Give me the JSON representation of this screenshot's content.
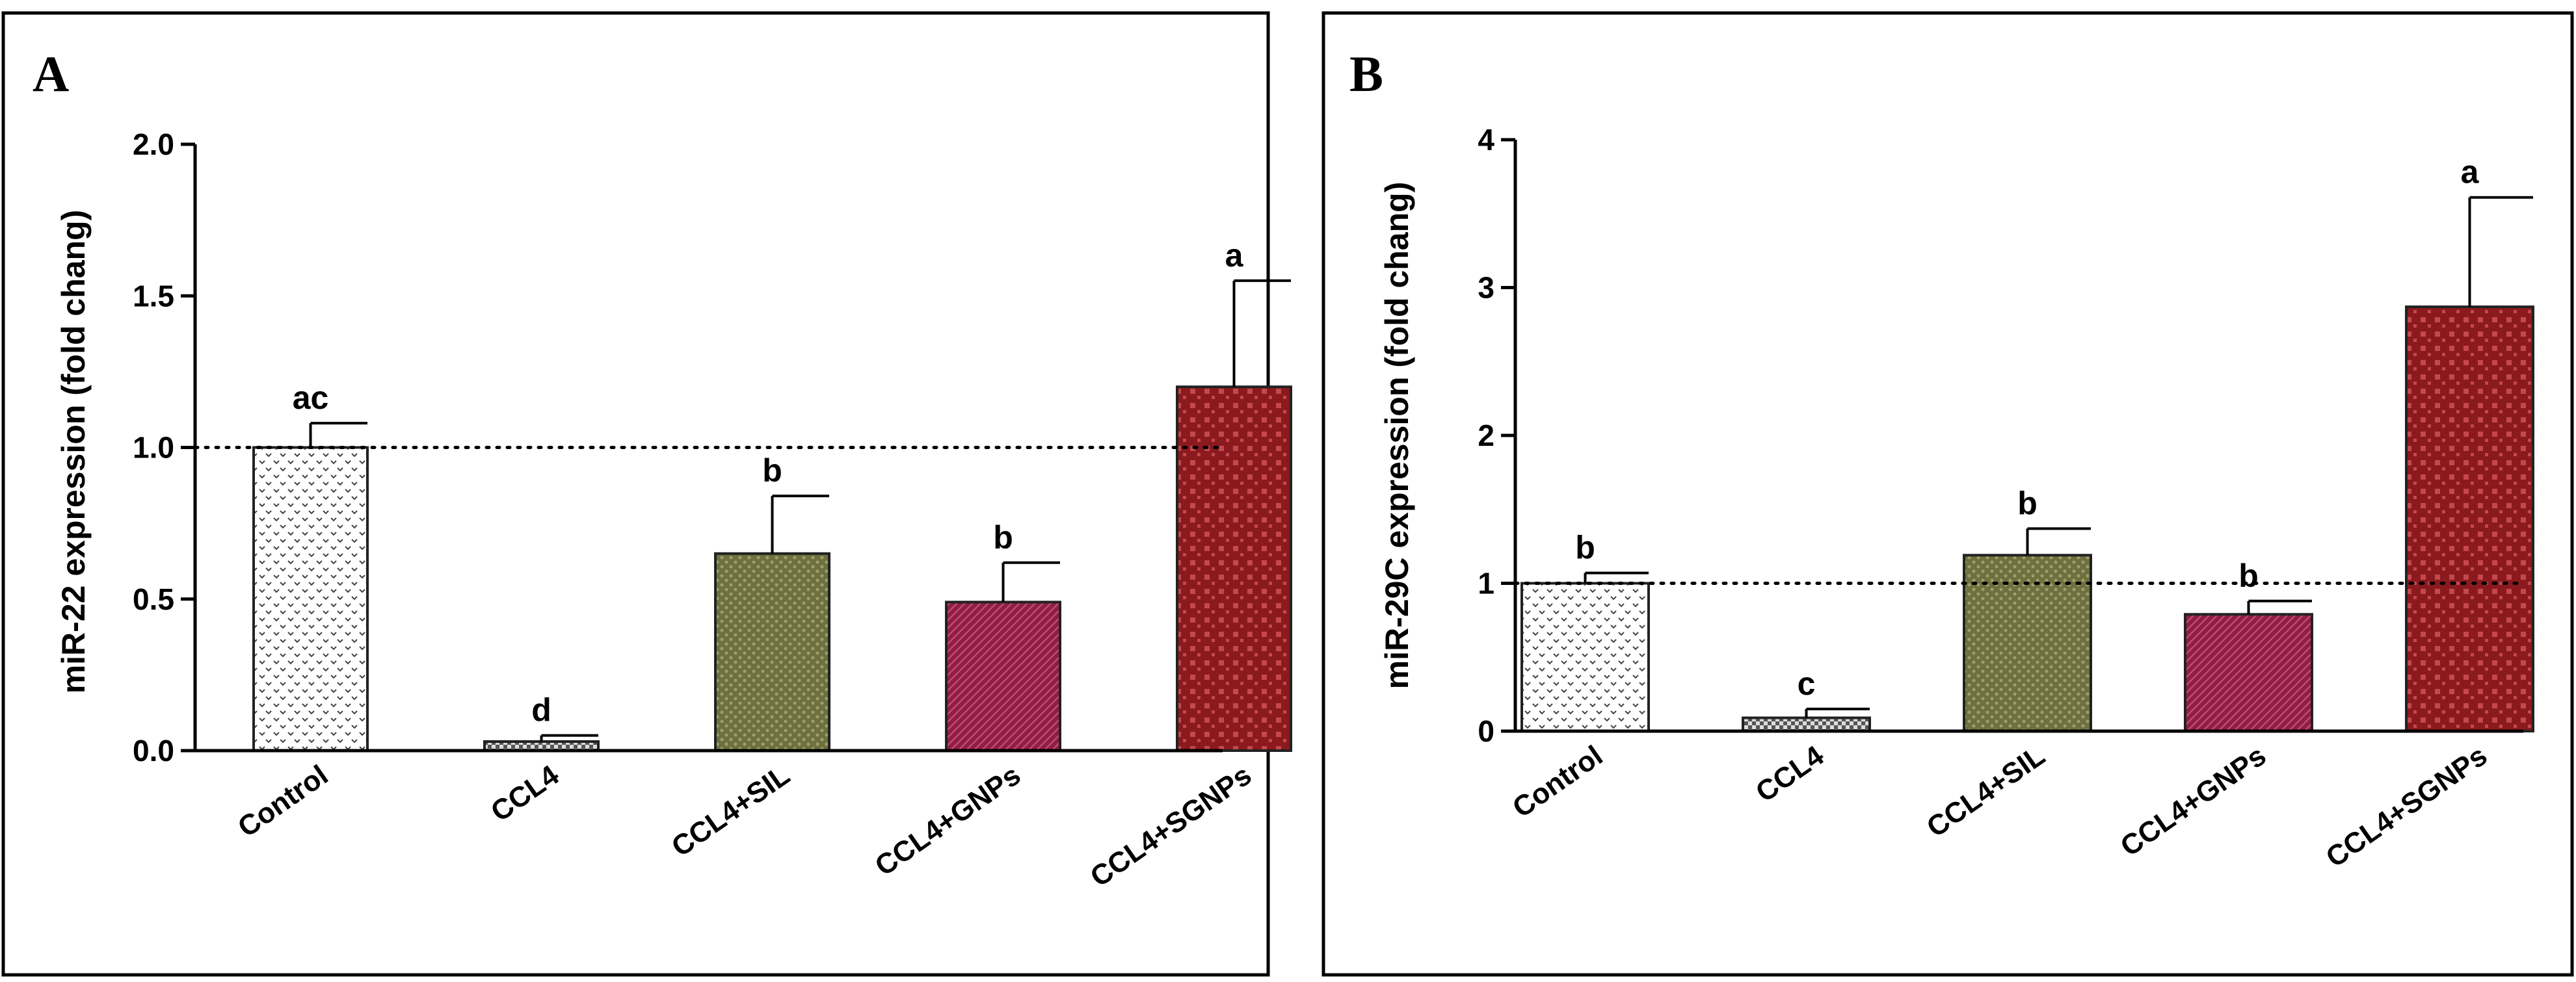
{
  "chart_data": [
    {
      "type": "bar",
      "panel_label": "A",
      "ylabel": "miR-22 expression (fold chang)",
      "xlabel": "",
      "ylim": [
        0,
        2.0
      ],
      "yticks": [
        "0.0",
        "0.5",
        "1.0",
        "1.5",
        "2.0"
      ],
      "ytick_values": [
        0,
        0.5,
        1.0,
        1.5,
        2.0
      ],
      "reference_line": 1.0,
      "categories": [
        "Control",
        "CCL4",
        "CCL4+SIL",
        "CCL4+GNPs",
        "CCL4+SGNPs"
      ],
      "values": [
        1.0,
        0.03,
        0.65,
        0.49,
        1.2
      ],
      "errors": [
        0.08,
        0.02,
        0.19,
        0.13,
        0.35
      ],
      "significance": [
        "ac",
        "d",
        "b",
        "b",
        "a"
      ],
      "bar_colors": [
        "#f4f4f4",
        "#9a9a9a",
        "#6f7040",
        "#8e1e45",
        "#8a1a1e"
      ]
    },
    {
      "type": "bar",
      "panel_label": "B",
      "ylabel": "miR-29C expression (fold chang)",
      "xlabel": "",
      "ylim": [
        0,
        4
      ],
      "yticks": [
        "0",
        "1",
        "2",
        "3",
        "4"
      ],
      "ytick_values": [
        0,
        1,
        2,
        3,
        4
      ],
      "reference_line": 1.0,
      "categories": [
        "Control",
        "CCL4",
        "CCL4+SIL",
        "CCL4+GNPs",
        "CCL4+SGNPs"
      ],
      "values": [
        1.0,
        0.09,
        1.19,
        0.79,
        2.87
      ],
      "errors": [
        0.07,
        0.06,
        0.18,
        0.09,
        0.74
      ],
      "significance": [
        "b",
        "c",
        "b",
        "b",
        "a"
      ],
      "bar_colors": [
        "#f4f4f4",
        "#9a9a9a",
        "#6f7040",
        "#8e1e45",
        "#8a1a1e"
      ]
    }
  ]
}
